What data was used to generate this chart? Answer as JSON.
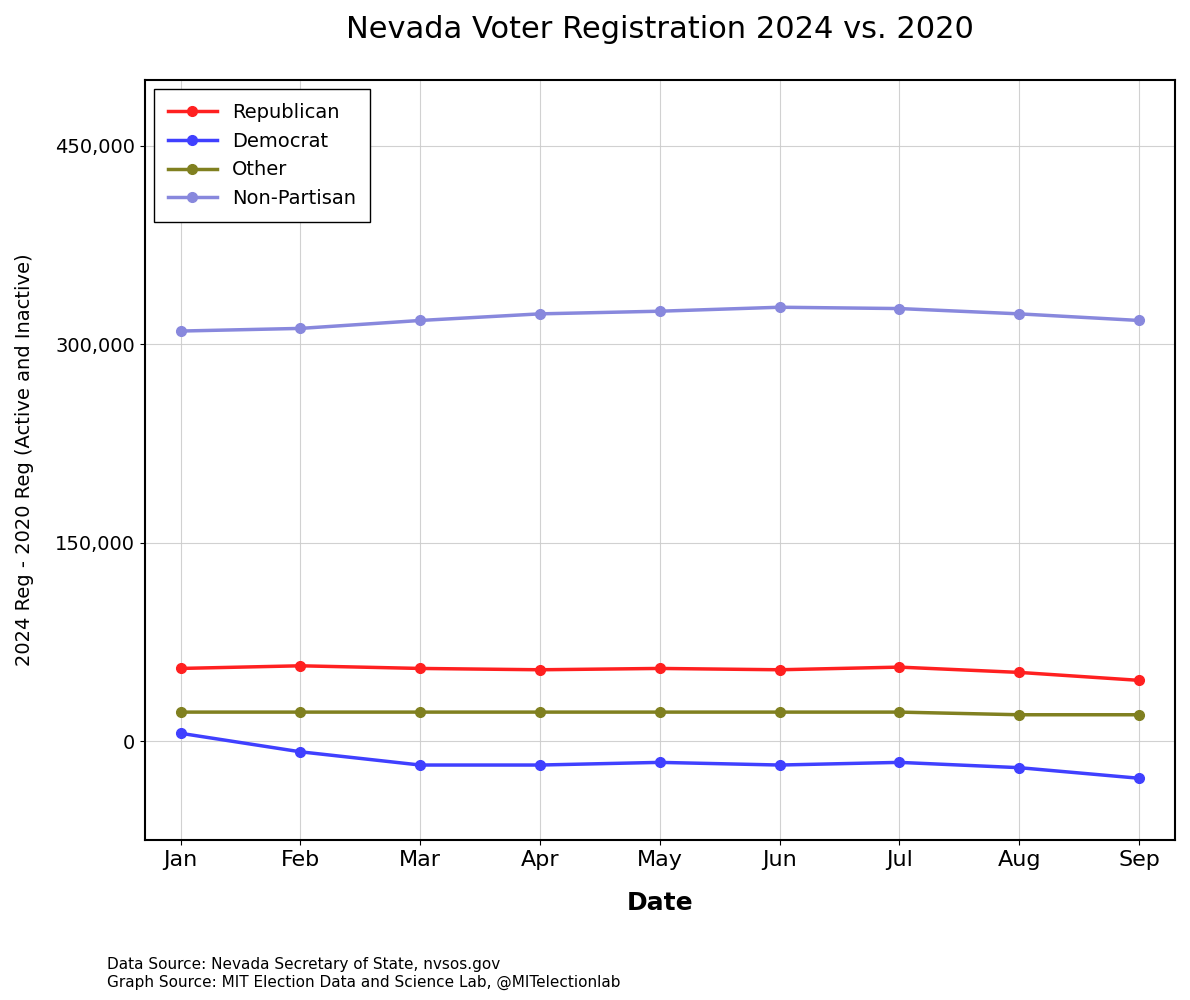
{
  "title": "Nevada Voter Registration 2024 vs. 2020",
  "xlabel": "Date",
  "ylabel": "2024 Reg - 2020 Reg (Active and Inactive)",
  "months": [
    "Jan",
    "Feb",
    "Mar",
    "Apr",
    "May",
    "Jun",
    "Jul",
    "Aug",
    "Sep"
  ],
  "republican": [
    55000,
    57000,
    55000,
    54000,
    55000,
    54000,
    56000,
    52000,
    46000
  ],
  "democrat": [
    6000,
    -8000,
    -18000,
    -18000,
    -16000,
    -18000,
    -16000,
    -20000,
    -28000
  ],
  "other": [
    22000,
    22000,
    22000,
    22000,
    22000,
    22000,
    22000,
    20000,
    20000
  ],
  "nonpartisan": [
    310000,
    312000,
    318000,
    323000,
    325000,
    328000,
    327000,
    323000,
    318000
  ],
  "colors": {
    "republican": "#FF2020",
    "democrat": "#4040FF",
    "other": "#808020",
    "nonpartisan": "#8888DD"
  },
  "legend_labels": [
    "Republican",
    "Democrat",
    "Other",
    "Non-Partisan"
  ],
  "ylim": [
    -75000,
    500000
  ],
  "yticks": [
    0,
    150000,
    300000,
    450000
  ],
  "ytick_labels": [
    "0",
    "150,000",
    "300,000",
    "450,000"
  ],
  "footnote_line1": "Data Source: Nevada Secretary of State, nvsos.gov",
  "footnote_line2": "Graph Source: MIT Election Data and Science Lab, @MITelectionlab",
  "background_color": "#FFFFFF",
  "plot_bg_color": "#FFFFFF",
  "grid_color": "#CCCCCC",
  "linewidth": 2.5,
  "markersize": 7
}
